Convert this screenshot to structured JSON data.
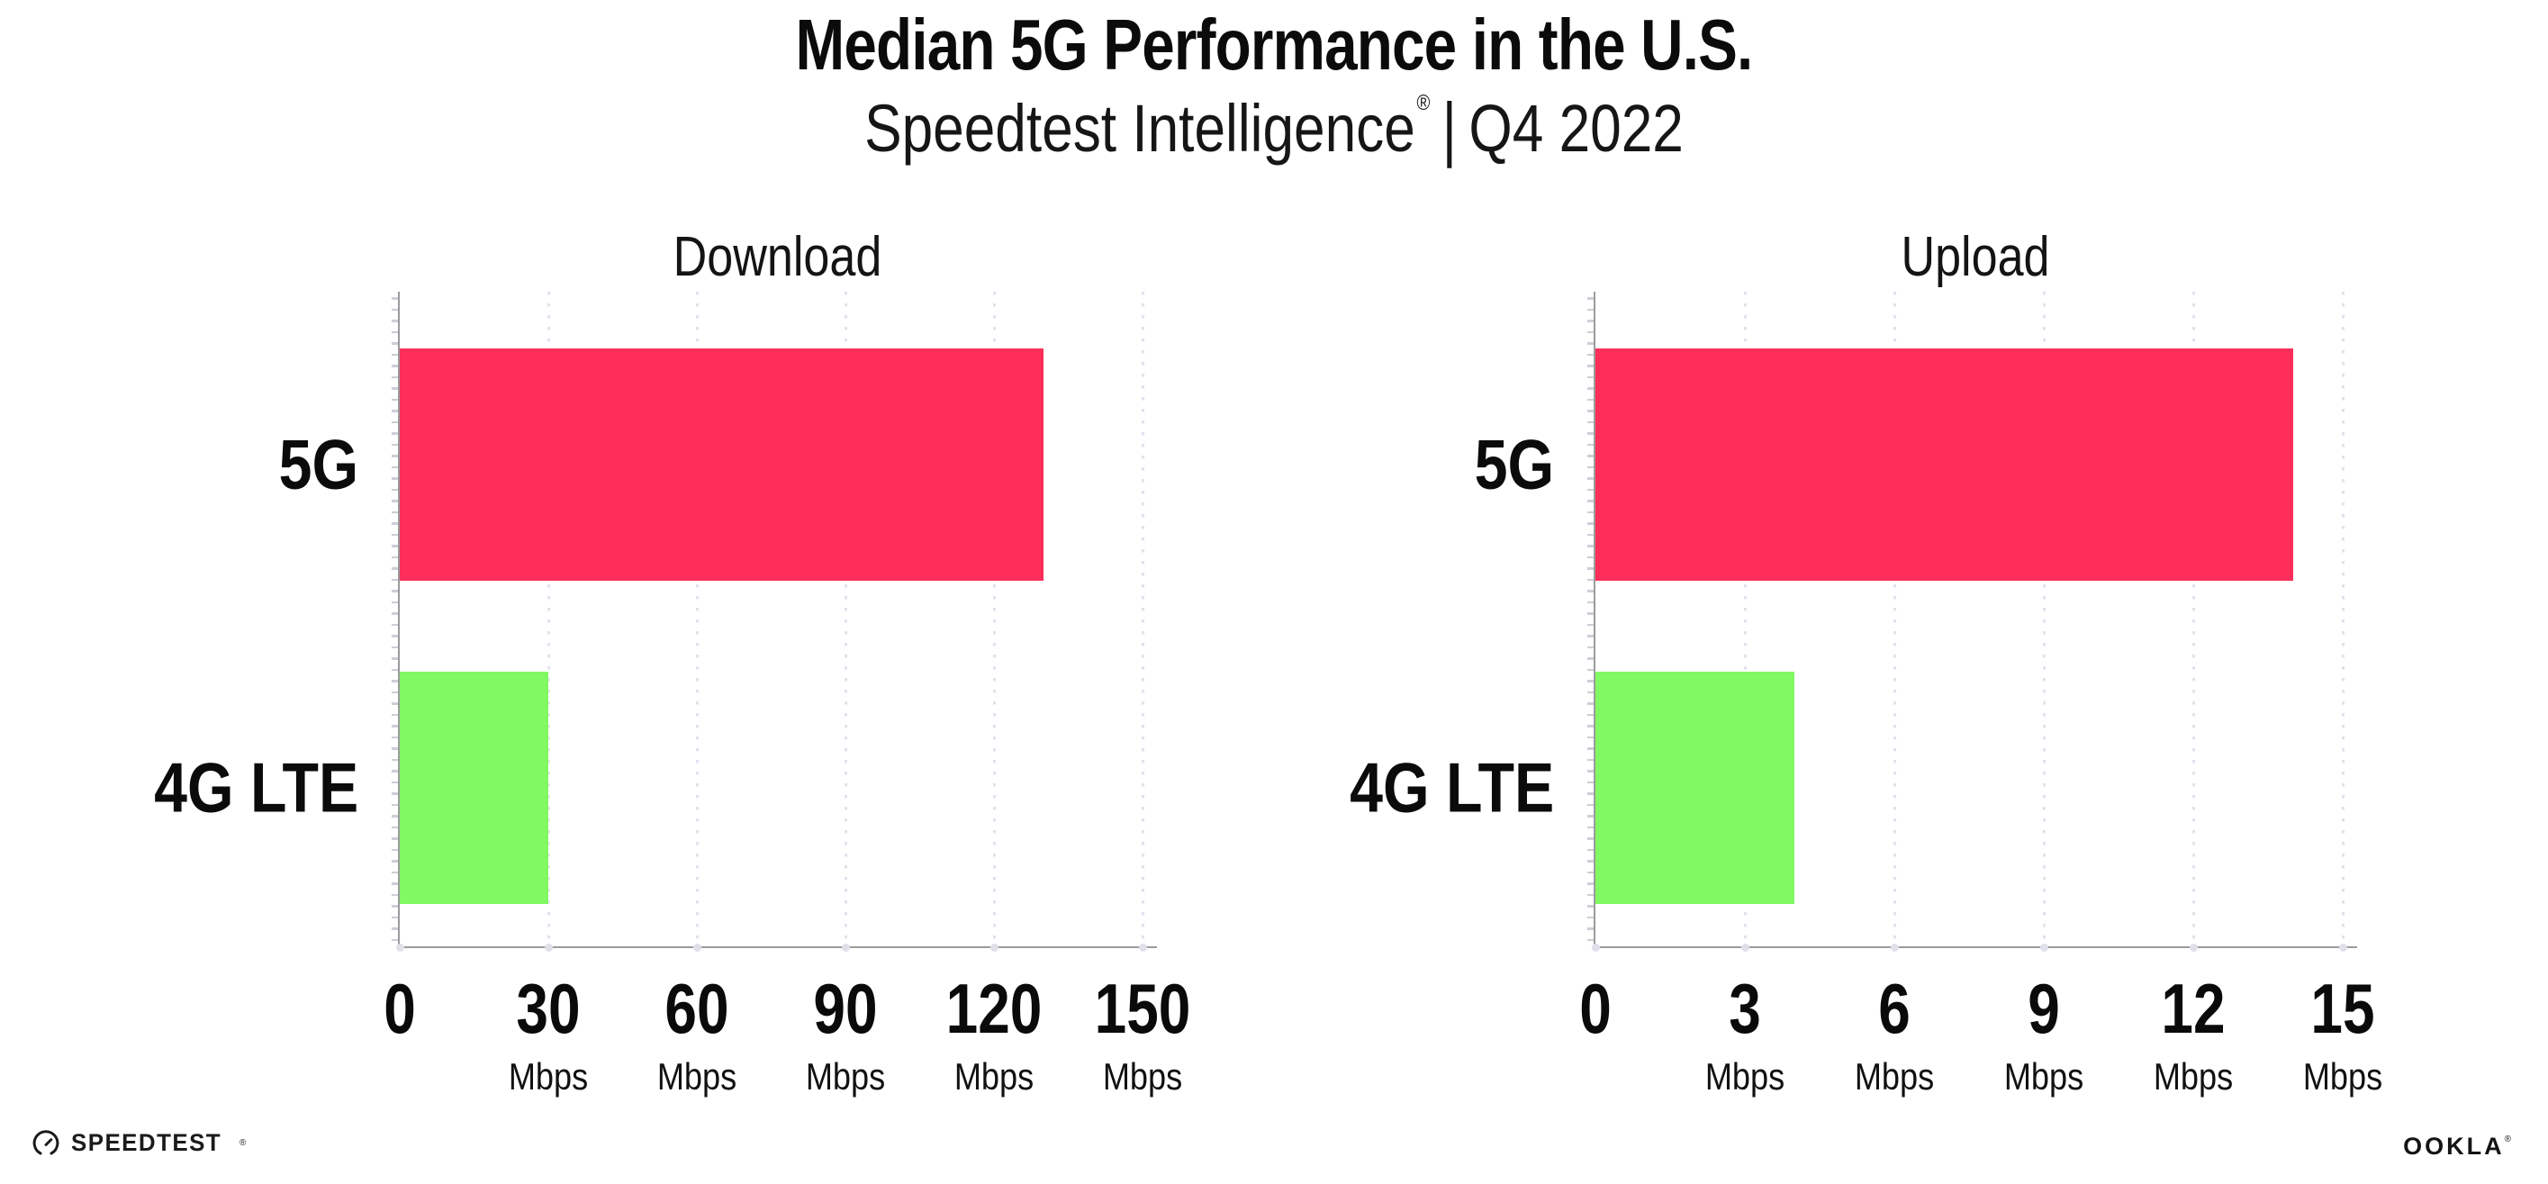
{
  "header": {
    "title": "Median 5G Performance in the U.S.",
    "subtitle_brand": "Speedtest Intelligence",
    "subtitle_registered": "®",
    "subtitle_separator": "|",
    "subtitle_period": "Q4 2022"
  },
  "colors": {
    "bar_5g": "#fd2e59",
    "bar_4g_lte": "#80f962",
    "axis": "#9b9b9b",
    "gridline": "#e2e2ee",
    "text": "#0c0c0c"
  },
  "chart_data": [
    {
      "type": "bar",
      "orientation": "horizontal",
      "title": "Download",
      "categories": [
        "5G",
        "4G LTE"
      ],
      "values": [
        130,
        30
      ],
      "unit": "Mbps",
      "xlim": [
        0,
        150
      ],
      "xticks": [
        0,
        30,
        60,
        90,
        120,
        150
      ],
      "tick_unit_label": "Mbps",
      "bar_colors": [
        "#fd2e59",
        "#80f962"
      ],
      "grid": "vertical-dotted",
      "legend": "none"
    },
    {
      "type": "bar",
      "orientation": "horizontal",
      "title": "Upload",
      "categories": [
        "5G",
        "4G LTE"
      ],
      "values": [
        14,
        4
      ],
      "unit": "Mbps",
      "xlim": [
        0,
        15
      ],
      "xticks": [
        0,
        3,
        6,
        9,
        12,
        15
      ],
      "tick_unit_label": "Mbps",
      "bar_colors": [
        "#fd2e59",
        "#80f962"
      ],
      "grid": "vertical-dotted",
      "legend": "none"
    }
  ],
  "footer": {
    "speedtest_logo_text": "SPEEDTEST",
    "speedtest_logo_mark": "®",
    "ookla_logo_text": "OOKLA",
    "ookla_logo_mark": "®"
  }
}
